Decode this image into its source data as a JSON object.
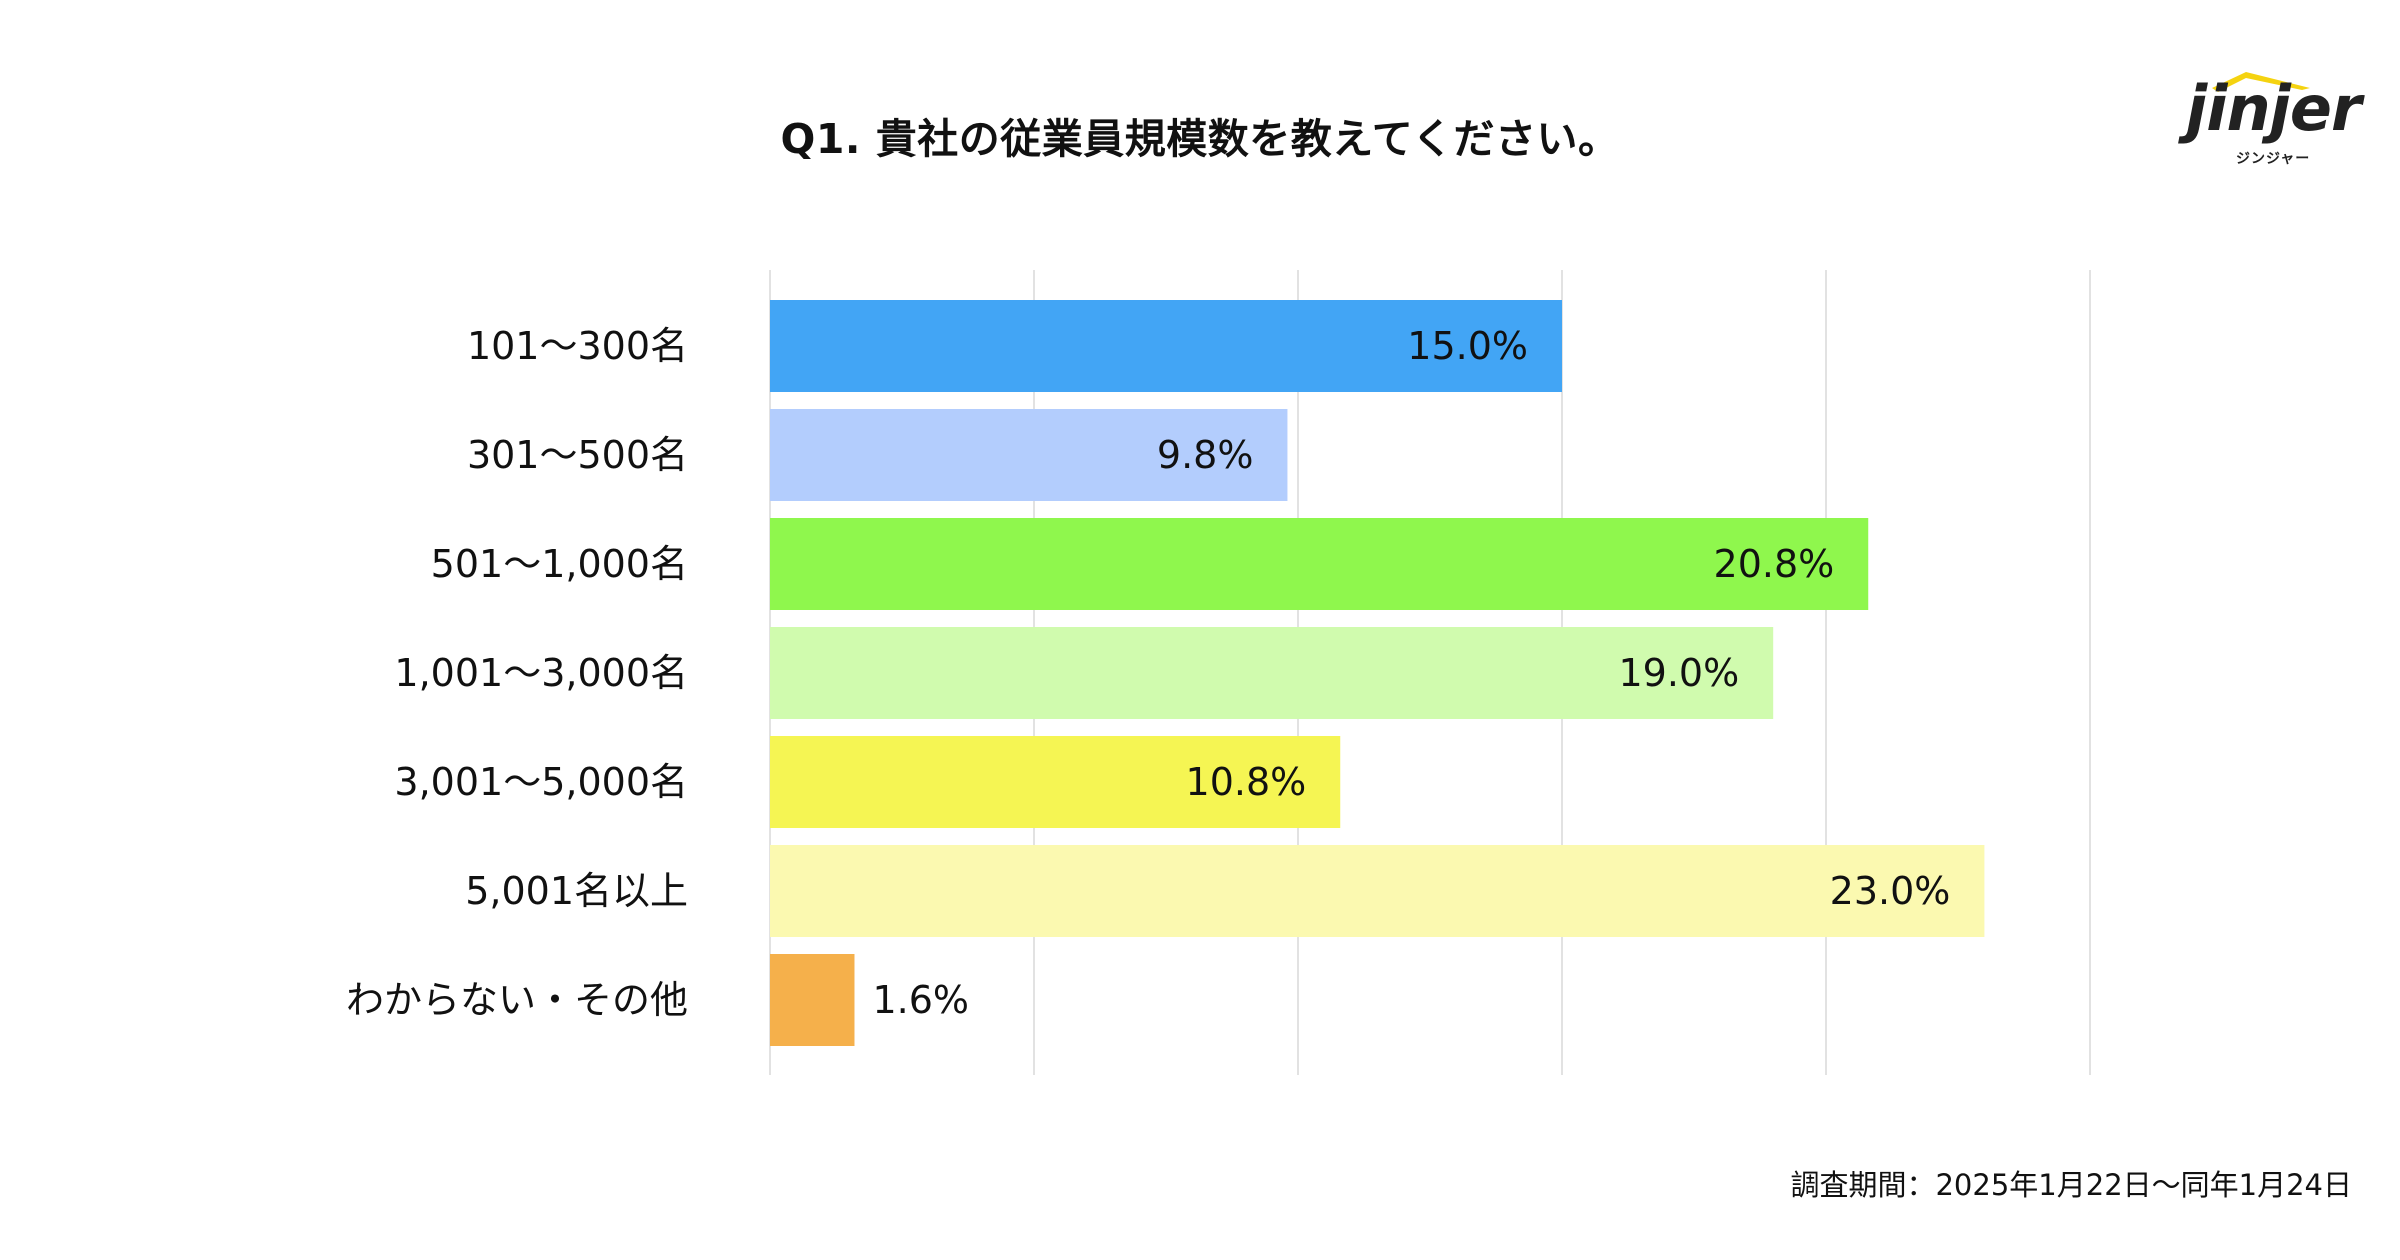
{
  "title": "Q1. 貴社の従業員規模数を教えてください。",
  "logo": {
    "wordmark": "jinjer",
    "subtext": "ジンジャー",
    "accent_color": "#f5d310"
  },
  "footer": "調査期間：2025年1月22日〜同年1月24日",
  "chart_data": {
    "type": "bar",
    "orientation": "horizontal",
    "categories": [
      "101〜300名",
      "301〜500名",
      "501〜1,000名",
      "1,001〜3,000名",
      "3,001〜5,000名",
      "5,001名以上",
      "わからない・その他"
    ],
    "values": [
      15.0,
      9.8,
      20.8,
      19.0,
      10.8,
      23.0,
      1.6
    ],
    "value_labels": [
      "15.0%",
      "9.8%",
      "20.8%",
      "19.0%",
      "10.8%",
      "23.0%",
      "1.6%"
    ],
    "colors": [
      "#42a5f5",
      "#b3cdfd",
      "#8ff74d",
      "#d0fbae",
      "#f5f553",
      "#fbf9b0",
      "#f5b04b"
    ],
    "xlim": [
      0,
      25
    ],
    "grid": true
  }
}
